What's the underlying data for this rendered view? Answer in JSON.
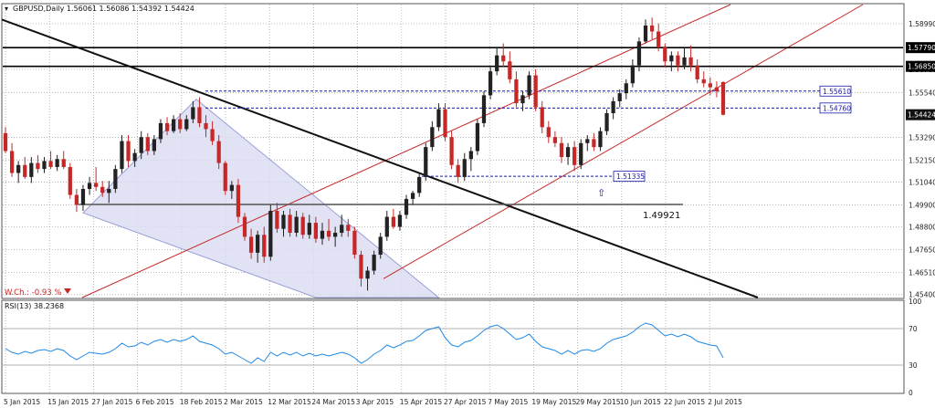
{
  "header": {
    "symbol_line": "GBPUSD,Daily  1.56061 1.56086 1.54392 1.54424",
    "rsi_label": "RSI(13) 38.2368",
    "weekly_change": "W.Ch.: -0.93 %"
  },
  "colors": {
    "background": "#fff",
    "grid": "#a8a8a8",
    "bull_candle": "#222222",
    "bear_candle": "#c62828",
    "channel": "#c62828",
    "trendline": "#111111",
    "wedge_fill": "#d9dcf2",
    "support_line": "#1a1aa8",
    "rsi_line": "#1e88e5"
  },
  "chart_data": [
    {
      "type": "candlestick",
      "title": "GBPUSD,Daily",
      "ohlc_header": {
        "open": 1.56061,
        "high": 1.56086,
        "low": 1.54392,
        "close": 1.54424
      },
      "y_ticks": [
        1.5899,
        1.567,
        1.5554,
        1.5329,
        1.5215,
        1.5104,
        1.499,
        1.488,
        1.4765,
        1.4651,
        1.454
      ],
      "x_ticks": [
        "5 Jan 2015",
        "15 Jan 2015",
        "27 Jan 2015",
        "6 Feb 2015",
        "18 Feb 2015",
        "2 Mar 2015",
        "12 Mar 2015",
        "24 Mar 2015",
        "3 Apr 2015",
        "15 Apr 2015",
        "27 Apr 2015",
        "7 May 2015",
        "19 May 2015",
        "29 May 2015",
        "10 Jun 2015",
        "22 Jun 2015",
        "2 Jul 2015"
      ],
      "ylim": [
        1.4525,
        1.5995
      ],
      "candles": [
        [
          1.535,
          1.538,
          1.525,
          1.526
        ],
        [
          1.526,
          1.53,
          1.513,
          1.515
        ],
        [
          1.515,
          1.521,
          1.51,
          1.519
        ],
        [
          1.519,
          1.523,
          1.512,
          1.513
        ],
        [
          1.513,
          1.523,
          1.51,
          1.52
        ],
        [
          1.52,
          1.524,
          1.515,
          1.517
        ],
        [
          1.517,
          1.523,
          1.515,
          1.521
        ],
        [
          1.521,
          1.526,
          1.517,
          1.518
        ],
        [
          1.518,
          1.524,
          1.516,
          1.522
        ],
        [
          1.522,
          1.526,
          1.517,
          1.518
        ],
        [
          1.518,
          1.52,
          1.502,
          1.504
        ],
        [
          1.504,
          1.507,
          1.4955,
          1.499
        ],
        [
          1.499,
          1.509,
          1.496,
          1.507
        ],
        [
          1.507,
          1.513,
          1.504,
          1.51
        ],
        [
          1.51,
          1.518,
          1.506,
          1.508
        ],
        [
          1.508,
          1.511,
          1.503,
          1.505
        ],
        [
          1.505,
          1.511,
          1.5,
          1.507
        ],
        [
          1.507,
          1.519,
          1.505,
          1.517
        ],
        [
          1.517,
          1.534,
          1.515,
          1.531
        ],
        [
          1.531,
          1.534,
          1.518,
          1.521
        ],
        [
          1.521,
          1.527,
          1.518,
          1.525
        ],
        [
          1.525,
          1.536,
          1.522,
          1.533
        ],
        [
          1.533,
          1.535,
          1.524,
          1.526
        ],
        [
          1.526,
          1.534,
          1.524,
          1.532
        ],
        [
          1.532,
          1.542,
          1.53,
          1.54
        ],
        [
          1.54,
          1.543,
          1.534,
          1.536
        ],
        [
          1.536,
          1.544,
          1.535,
          1.542
        ],
        [
          1.542,
          1.545,
          1.535,
          1.537
        ],
        [
          1.537,
          1.544,
          1.536,
          1.542
        ],
        [
          1.542,
          1.551,
          1.54,
          1.548
        ],
        [
          1.548,
          1.553,
          1.538,
          1.54
        ],
        [
          1.54,
          1.544,
          1.533,
          1.537
        ],
        [
          1.537,
          1.541,
          1.529,
          1.531
        ],
        [
          1.531,
          1.534,
          1.517,
          1.52
        ],
        [
          1.52,
          1.521,
          1.504,
          1.506
        ],
        [
          1.506,
          1.511,
          1.502,
          1.509
        ],
        [
          1.509,
          1.512,
          1.49,
          1.493
        ],
        [
          1.493,
          1.495,
          1.481,
          1.483
        ],
        [
          1.483,
          1.487,
          1.472,
          1.475
        ],
        [
          1.475,
          1.486,
          1.47,
          1.484
        ],
        [
          1.484,
          1.488,
          1.47,
          1.473
        ],
        [
          1.473,
          1.499,
          1.471,
          1.496
        ],
        [
          1.496,
          1.5,
          1.485,
          1.487
        ],
        [
          1.487,
          1.496,
          1.483,
          1.494
        ],
        [
          1.494,
          1.497,
          1.483,
          1.485
        ],
        [
          1.485,
          1.496,
          1.483,
          1.493
        ],
        [
          1.493,
          1.495,
          1.482,
          1.484
        ],
        [
          1.484,
          1.494,
          1.482,
          1.49
        ],
        [
          1.49,
          1.493,
          1.48,
          1.482
        ],
        [
          1.482,
          1.49,
          1.479,
          1.486
        ],
        [
          1.486,
          1.492,
          1.481,
          1.483
        ],
        [
          1.483,
          1.488,
          1.478,
          1.485
        ],
        [
          1.485,
          1.494,
          1.483,
          1.489
        ],
        [
          1.489,
          1.492,
          1.483,
          1.486
        ],
        [
          1.486,
          1.488,
          1.472,
          1.474
        ],
        [
          1.474,
          1.476,
          1.458,
          1.462
        ],
        [
          1.462,
          1.468,
          1.456,
          1.466
        ],
        [
          1.466,
          1.476,
          1.464,
          1.474
        ],
        [
          1.474,
          1.485,
          1.472,
          1.483
        ],
        [
          1.483,
          1.496,
          1.481,
          1.493
        ],
        [
          1.493,
          1.497,
          1.487,
          1.488
        ],
        [
          1.488,
          1.496,
          1.486,
          1.494
        ],
        [
          1.494,
          1.504,
          1.492,
          1.502
        ],
        [
          1.502,
          1.506,
          1.499,
          1.505
        ],
        [
          1.505,
          1.515,
          1.503,
          1.513
        ],
        [
          1.513,
          1.53,
          1.511,
          1.528
        ],
        [
          1.528,
          1.541,
          1.526,
          1.538
        ],
        [
          1.538,
          1.55,
          1.536,
          1.547
        ],
        [
          1.547,
          1.55,
          1.531,
          1.533
        ],
        [
          1.533,
          1.536,
          1.517,
          1.519
        ],
        [
          1.519,
          1.522,
          1.51,
          1.513
        ],
        [
          1.513,
          1.525,
          1.511,
          1.522
        ],
        [
          1.522,
          1.528,
          1.516,
          1.526
        ],
        [
          1.526,
          1.542,
          1.524,
          1.54
        ],
        [
          1.54,
          1.556,
          1.538,
          1.554
        ],
        [
          1.554,
          1.568,
          1.552,
          1.566
        ],
        [
          1.566,
          1.578,
          1.564,
          1.574
        ],
        [
          1.574,
          1.58,
          1.568,
          1.571
        ],
        [
          1.571,
          1.576,
          1.56,
          1.562
        ],
        [
          1.562,
          1.566,
          1.548,
          1.55
        ],
        [
          1.55,
          1.556,
          1.546,
          1.554
        ],
        [
          1.554,
          1.566,
          1.552,
          1.564
        ],
        [
          1.564,
          1.567,
          1.546,
          1.548
        ],
        [
          1.548,
          1.551,
          1.535,
          1.538
        ],
        [
          1.538,
          1.541,
          1.53,
          1.533
        ],
        [
          1.533,
          1.536,
          1.528,
          1.53
        ],
        [
          1.53,
          1.533,
          1.52,
          1.523
        ],
        [
          1.523,
          1.53,
          1.519,
          1.528
        ],
        [
          1.528,
          1.531,
          1.516,
          1.519
        ],
        [
          1.519,
          1.532,
          1.517,
          1.53
        ],
        [
          1.53,
          1.534,
          1.526,
          1.532
        ],
        [
          1.532,
          1.535,
          1.526,
          1.528
        ],
        [
          1.528,
          1.538,
          1.526,
          1.536
        ],
        [
          1.536,
          1.547,
          1.534,
          1.545
        ],
        [
          1.545,
          1.553,
          1.542,
          1.551
        ],
        [
          1.551,
          1.557,
          1.548,
          1.555
        ],
        [
          1.555,
          1.562,
          1.552,
          1.56
        ],
        [
          1.56,
          1.572,
          1.558,
          1.569
        ],
        [
          1.569,
          1.583,
          1.566,
          1.581
        ],
        [
          1.581,
          1.592,
          1.58,
          1.589
        ],
        [
          1.589,
          1.593,
          1.582,
          1.586
        ],
        [
          1.586,
          1.59,
          1.576,
          1.578
        ],
        [
          1.578,
          1.58,
          1.568,
          1.571
        ],
        [
          1.571,
          1.576,
          1.566,
          1.574
        ],
        [
          1.574,
          1.576,
          1.566,
          1.569
        ],
        [
          1.569,
          1.578,
          1.567,
          1.573
        ],
        [
          1.573,
          1.579,
          1.566,
          1.569
        ],
        [
          1.569,
          1.572,
          1.56,
          1.562
        ],
        [
          1.562,
          1.566,
          1.558,
          1.56
        ],
        [
          1.56,
          1.563,
          1.554,
          1.558
        ],
        [
          1.558,
          1.561,
          1.553,
          1.556
        ],
        [
          1.5606,
          1.5609,
          1.5439,
          1.5442
        ]
      ],
      "horizontal_levels": [
        {
          "label": "1.57790",
          "value": 1.5779,
          "style": "solid"
        },
        {
          "label": "1.56850",
          "value": 1.5685,
          "style": "solid"
        },
        {
          "label": "1.55610",
          "value": 1.5561,
          "style": "dashed"
        },
        {
          "label": "1.54760",
          "value": 1.5476,
          "style": "dashed"
        },
        {
          "label": "1.51335",
          "value": 1.51335,
          "style": "dashed"
        },
        {
          "label": "1.49921",
          "value": 1.49921,
          "style": "solid"
        }
      ],
      "current_price_label": "1.54424"
    },
    {
      "type": "line",
      "title": "RSI(13) 38.2368",
      "y_ticks": [
        100,
        70,
        30,
        0
      ],
      "ylim": [
        0,
        100
      ],
      "values": [
        48,
        44,
        42,
        45,
        43,
        46,
        47,
        45,
        48,
        46,
        40,
        36,
        40,
        44,
        43,
        42,
        44,
        48,
        54,
        50,
        51,
        55,
        52,
        56,
        58,
        55,
        58,
        56,
        58,
        62,
        56,
        54,
        52,
        48,
        42,
        44,
        40,
        36,
        32,
        38,
        34,
        44,
        40,
        44,
        41,
        44,
        40,
        43,
        40,
        42,
        40,
        42,
        44,
        42,
        38,
        32,
        36,
        42,
        46,
        52,
        49,
        52,
        56,
        57,
        62,
        68,
        70,
        72,
        60,
        52,
        50,
        55,
        57,
        62,
        68,
        72,
        74,
        70,
        64,
        58,
        60,
        64,
        56,
        50,
        48,
        46,
        42,
        46,
        42,
        46,
        47,
        45,
        48,
        54,
        58,
        60,
        62,
        66,
        72,
        76,
        74,
        68,
        62,
        64,
        61,
        64,
        61,
        56,
        54,
        52,
        51,
        38
      ]
    }
  ]
}
